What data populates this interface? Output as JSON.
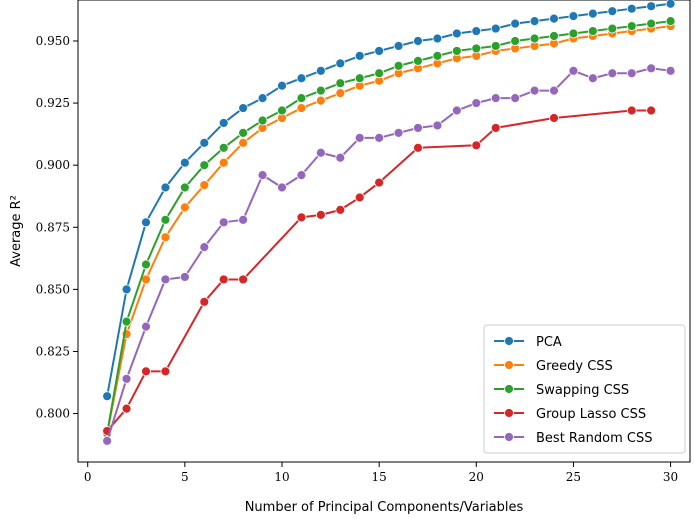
{
  "chart_data": {
    "type": "line",
    "title": "",
    "xlabel": "Number of Principal Components/Variables",
    "ylabel": "Average R²",
    "xlim": [
      -0.5,
      31.0
    ],
    "ylim": [
      0.7805,
      0.9665
    ],
    "xticks": [
      0,
      5,
      10,
      15,
      20,
      25,
      30
    ],
    "yticks": [
      0.8,
      0.825,
      0.85,
      0.875,
      0.9,
      0.925,
      0.95
    ],
    "ytick_labels": [
      "0.800",
      "0.825",
      "0.850",
      "0.875",
      "0.900",
      "0.925",
      "0.950"
    ],
    "grid": false,
    "legend_position": "lower-right",
    "series": [
      {
        "name": "PCA",
        "color": "#1f77b4",
        "x": [
          1,
          2,
          3,
          4,
          5,
          6,
          7,
          8,
          9,
          10,
          11,
          12,
          13,
          14,
          15,
          16,
          17,
          18,
          19,
          20,
          21,
          22,
          23,
          24,
          25,
          26,
          27,
          28,
          29,
          30
        ],
        "values": [
          0.807,
          0.85,
          0.877,
          0.891,
          0.901,
          0.909,
          0.917,
          0.923,
          0.927,
          0.932,
          0.935,
          0.938,
          0.941,
          0.944,
          0.946,
          0.948,
          0.95,
          0.951,
          0.953,
          0.954,
          0.955,
          0.957,
          0.958,
          0.959,
          0.96,
          0.961,
          0.962,
          0.963,
          0.964,
          0.965
        ]
      },
      {
        "name": "Greedy CSS",
        "color": "#ff7f0e",
        "x": [
          1,
          2,
          3,
          4,
          5,
          6,
          7,
          8,
          9,
          10,
          11,
          12,
          13,
          14,
          15,
          16,
          17,
          18,
          19,
          20,
          21,
          22,
          23,
          24,
          25,
          26,
          27,
          28,
          29,
          30
        ],
        "values": [
          0.792,
          0.832,
          0.854,
          0.871,
          0.883,
          0.892,
          0.901,
          0.909,
          0.915,
          0.919,
          0.923,
          0.926,
          0.929,
          0.932,
          0.934,
          0.937,
          0.939,
          0.941,
          0.943,
          0.944,
          0.946,
          0.947,
          0.948,
          0.949,
          0.951,
          0.952,
          0.953,
          0.954,
          0.955,
          0.956
        ]
      },
      {
        "name": "Swapping CSS",
        "color": "#2ca02c",
        "x": [
          1,
          2,
          3,
          4,
          5,
          6,
          7,
          8,
          9,
          10,
          11,
          12,
          13,
          14,
          15,
          16,
          17,
          18,
          19,
          20,
          21,
          22,
          23,
          24,
          25,
          26,
          27,
          28,
          29,
          30
        ],
        "values": [
          0.792,
          0.837,
          0.86,
          0.878,
          0.891,
          0.9,
          0.907,
          0.913,
          0.918,
          0.922,
          0.927,
          0.93,
          0.933,
          0.935,
          0.937,
          0.94,
          0.942,
          0.944,
          0.946,
          0.947,
          0.948,
          0.95,
          0.951,
          0.952,
          0.953,
          0.954,
          0.955,
          0.956,
          0.957,
          0.958
        ]
      },
      {
        "name": "Group Lasso CSS",
        "color": "#d62728",
        "x": [
          1,
          2,
          3,
          4,
          6,
          7,
          8,
          11,
          12,
          13,
          14,
          15,
          17,
          20,
          21,
          24,
          28,
          29
        ],
        "values": [
          0.793,
          0.802,
          0.817,
          0.817,
          0.845,
          0.854,
          0.854,
          0.879,
          0.88,
          0.882,
          0.887,
          0.893,
          0.907,
          0.908,
          0.915,
          0.919,
          0.922,
          0.922
        ]
      },
      {
        "name": "Best Random CSS",
        "color": "#9467bd",
        "x": [
          1,
          2,
          3,
          4,
          5,
          6,
          7,
          8,
          9,
          10,
          11,
          12,
          13,
          14,
          15,
          16,
          17,
          18,
          19,
          20,
          21,
          22,
          23,
          24,
          25,
          26,
          27,
          28,
          29,
          30
        ],
        "values": [
          0.789,
          0.814,
          0.835,
          0.854,
          0.855,
          0.867,
          0.877,
          0.878,
          0.896,
          0.891,
          0.896,
          0.905,
          0.903,
          0.911,
          0.911,
          0.913,
          0.915,
          0.916,
          0.922,
          0.925,
          0.927,
          0.927,
          0.93,
          0.93,
          0.938,
          0.935,
          0.937,
          0.937,
          0.939,
          0.938
        ]
      }
    ]
  }
}
